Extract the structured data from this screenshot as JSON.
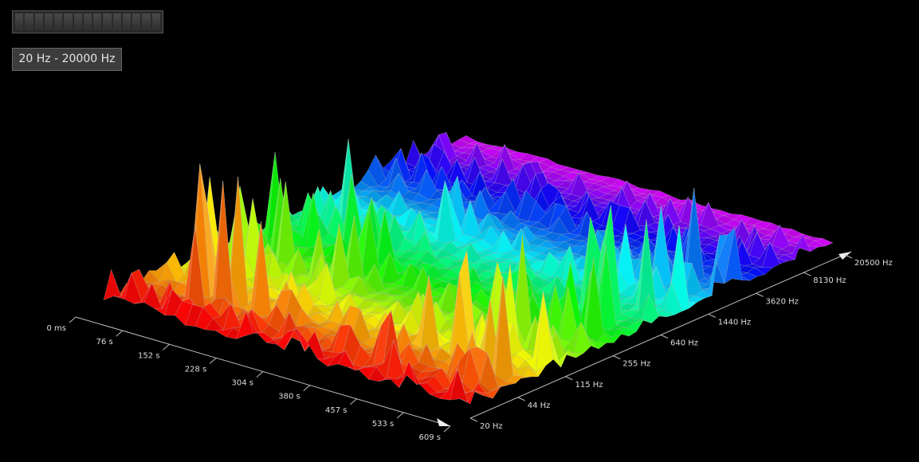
{
  "range_button": "20 Hz - 20000 Hz",
  "time_axis": {
    "labels": [
      "0 ms",
      "76 s",
      "152 s",
      "228 s",
      "304 s",
      "380 s",
      "457 s",
      "533 s",
      "609 s"
    ]
  },
  "frequency_axis": {
    "labels": [
      "20 Hz",
      "44 Hz",
      "115 Hz",
      "255 Hz",
      "640 Hz",
      "1440 Hz",
      "3620 Hz",
      "8130 Hz",
      "20500 Hz"
    ]
  }
}
